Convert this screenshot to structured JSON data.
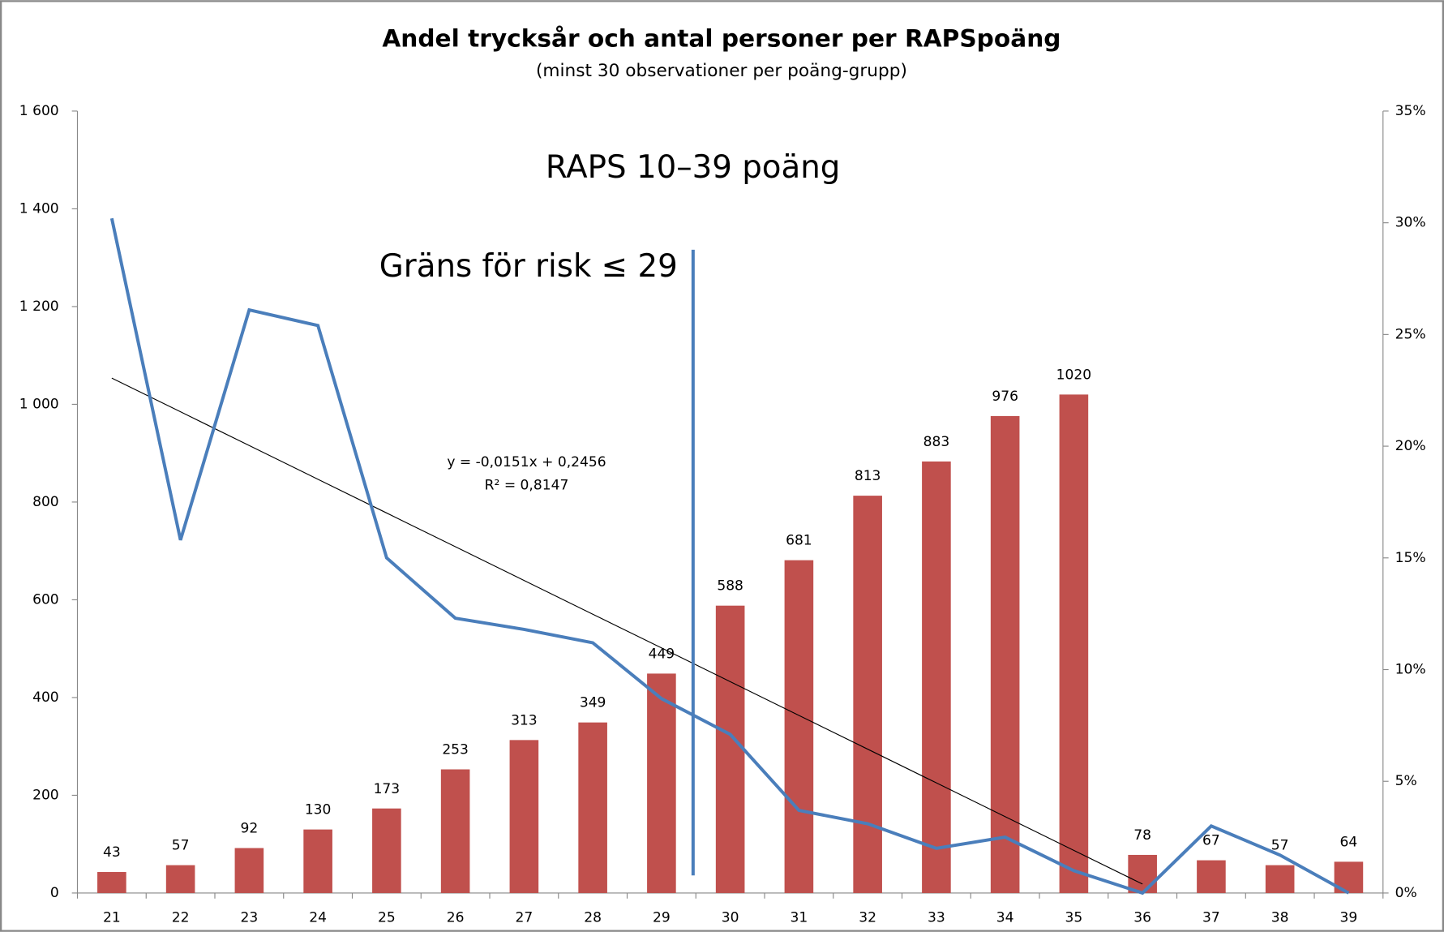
{
  "chart_data": {
    "type": "bar_line",
    "title": "Andel trycksår och antal personer per RAPSpoäng",
    "subtitle": "(minst 30 observationer per poäng-grupp)",
    "annotations": [
      "RAPS 10–39 poäng",
      "Gräns för risk ≤ 29"
    ],
    "categories": [
      "21",
      "22",
      "23",
      "24",
      "25",
      "26",
      "27",
      "28",
      "29",
      "30",
      "31",
      "32",
      "33",
      "34",
      "35",
      "36",
      "37",
      "38",
      "39"
    ],
    "series": [
      {
        "type": "bar",
        "color": "#c0504d",
        "values": [
          43,
          57,
          92,
          130,
          173,
          253,
          313,
          349,
          449,
          588,
          681,
          813,
          883,
          976,
          1020,
          78,
          67,
          57,
          64
        ]
      },
      {
        "type": "line",
        "axis": "y2",
        "color": "#4a7ebb",
        "values": [
          30.2,
          15.8,
          26.1,
          25.4,
          15.0,
          12.3,
          11.8,
          11.2,
          8.7,
          7.1,
          3.7,
          3.1,
          2.0,
          2.5,
          1.0,
          0,
          3.0,
          1.7,
          0
        ]
      }
    ],
    "trendline": {
      "axis": "y2",
      "color": "#000000",
      "equation": "y = -0,0151x + 0,2456",
      "r2": "R² = 0,8147",
      "values": [
        23.05,
        21.54,
        20.03,
        18.52,
        17.01,
        15.5,
        13.99,
        12.48,
        10.97,
        9.46,
        7.95,
        6.44,
        4.93,
        3.42,
        1.91,
        0.4,
        null,
        null,
        null
      ]
    },
    "ylim": [
      0,
      1600
    ],
    "yticks": [
      0,
      200,
      400,
      600,
      800,
      {
        "value": 1000,
        "label": "1 000"
      },
      {
        "value": 1200,
        "label": "1 200"
      },
      {
        "value": 1400,
        "label": "1 400"
      },
      {
        "value": 1600,
        "label": "1 600"
      }
    ],
    "y2lim": [
      0,
      35
    ],
    "y2ticks": [
      {
        "value": 0,
        "label": "0%"
      },
      {
        "value": 5,
        "label": "5%"
      },
      {
        "value": 10,
        "label": "10%"
      },
      {
        "value": 15,
        "label": "15%"
      },
      {
        "value": 20,
        "label": "20%"
      },
      {
        "value": 25,
        "label": "25%"
      },
      {
        "value": 30,
        "label": "30%"
      },
      {
        "value": 35,
        "label": "35%"
      }
    ]
  }
}
